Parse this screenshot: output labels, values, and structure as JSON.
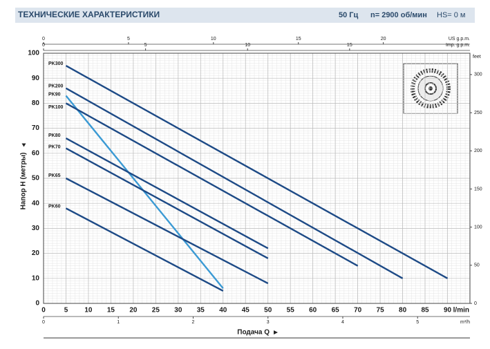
{
  "header": {
    "title": "ТЕХНИЧЕСКИЕ ХАРАКТЕРИСТИКИ",
    "frequency": "50 Гц",
    "speed": "n= 2900 об/мин",
    "suction": "HS= 0 м"
  },
  "chart_data": {
    "type": "line",
    "xlabel": "Подача Q",
    "ylabel": "Напор H (метры)",
    "xunit": "l/min",
    "xlim": [
      0,
      95
    ],
    "xticks": [
      0,
      5,
      10,
      15,
      20,
      25,
      30,
      35,
      40,
      45,
      50,
      55,
      60,
      65,
      70,
      75,
      80,
      85,
      90
    ],
    "ylim": [
      0,
      100
    ],
    "yticks": [
      0,
      10,
      20,
      30,
      40,
      50,
      60,
      70,
      80,
      90,
      100
    ],
    "grid": true,
    "us_gpm": {
      "label": "US g.p.m.",
      "lim": [
        0,
        25.1
      ],
      "ticks": [
        0,
        5,
        10,
        15,
        20
      ]
    },
    "imp_gpm": {
      "label": "Imp. g.p.m.",
      "lim": [
        0,
        20.9
      ],
      "ticks": [
        0,
        5,
        10,
        15
      ]
    },
    "m3h": {
      "label": "m³/h",
      "lim": [
        0,
        5.7
      ],
      "ticks": [
        0,
        1,
        2,
        3,
        4,
        5
      ]
    },
    "feet": {
      "label": "feet",
      "lim": [
        0,
        328
      ],
      "ticks": [
        0,
        50,
        100,
        150,
        200,
        250,
        300
      ]
    },
    "series": [
      {
        "name": "PK300",
        "color": "#1d4a86",
        "x": [
          5,
          90
        ],
        "values": [
          95,
          10
        ]
      },
      {
        "name": "PK200",
        "color": "#1d4a86",
        "x": [
          5,
          80
        ],
        "values": [
          86,
          10
        ]
      },
      {
        "name": "PK90",
        "color": "#3b9ad4",
        "x": [
          5,
          40
        ],
        "values": [
          83,
          6
        ]
      },
      {
        "name": "PK100",
        "color": "#1d4a86",
        "x": [
          5,
          70
        ],
        "values": [
          80,
          15
        ]
      },
      {
        "name": "PK80",
        "color": "#1d4a86",
        "x": [
          5,
          50
        ],
        "values": [
          66,
          22
        ]
      },
      {
        "name": "PK70",
        "color": "#1d4a86",
        "x": [
          5,
          50
        ],
        "values": [
          62,
          18
        ]
      },
      {
        "name": "PK65",
        "color": "#1d4a86",
        "x": [
          5,
          50
        ],
        "values": [
          50,
          8
        ]
      },
      {
        "name": "PK60",
        "color": "#1d4a86",
        "x": [
          5,
          40
        ],
        "values": [
          38,
          5
        ]
      }
    ]
  }
}
